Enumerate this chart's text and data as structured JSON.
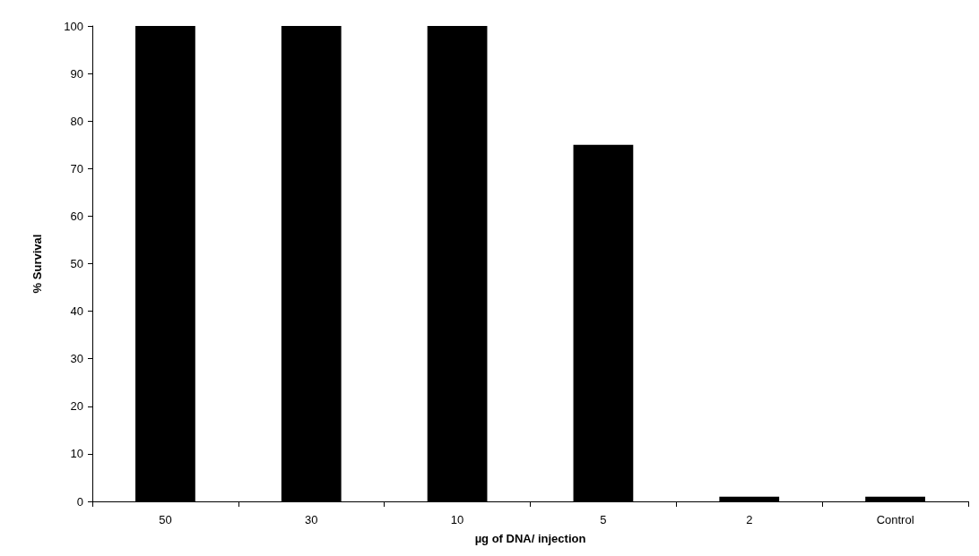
{
  "chart_data": {
    "type": "bar",
    "xlabel": "µg of DNA/ injection",
    "ylabel": "% Survival",
    "categories": [
      "50",
      "30",
      "10",
      "5",
      "2",
      "Control"
    ],
    "values": [
      100,
      100,
      100,
      75,
      1,
      1
    ],
    "color": "#000000",
    "ylim": [
      0,
      100
    ],
    "yticks": [
      0,
      10,
      20,
      30,
      40,
      50,
      60,
      70,
      80,
      90,
      100
    ],
    "grid": false
  }
}
